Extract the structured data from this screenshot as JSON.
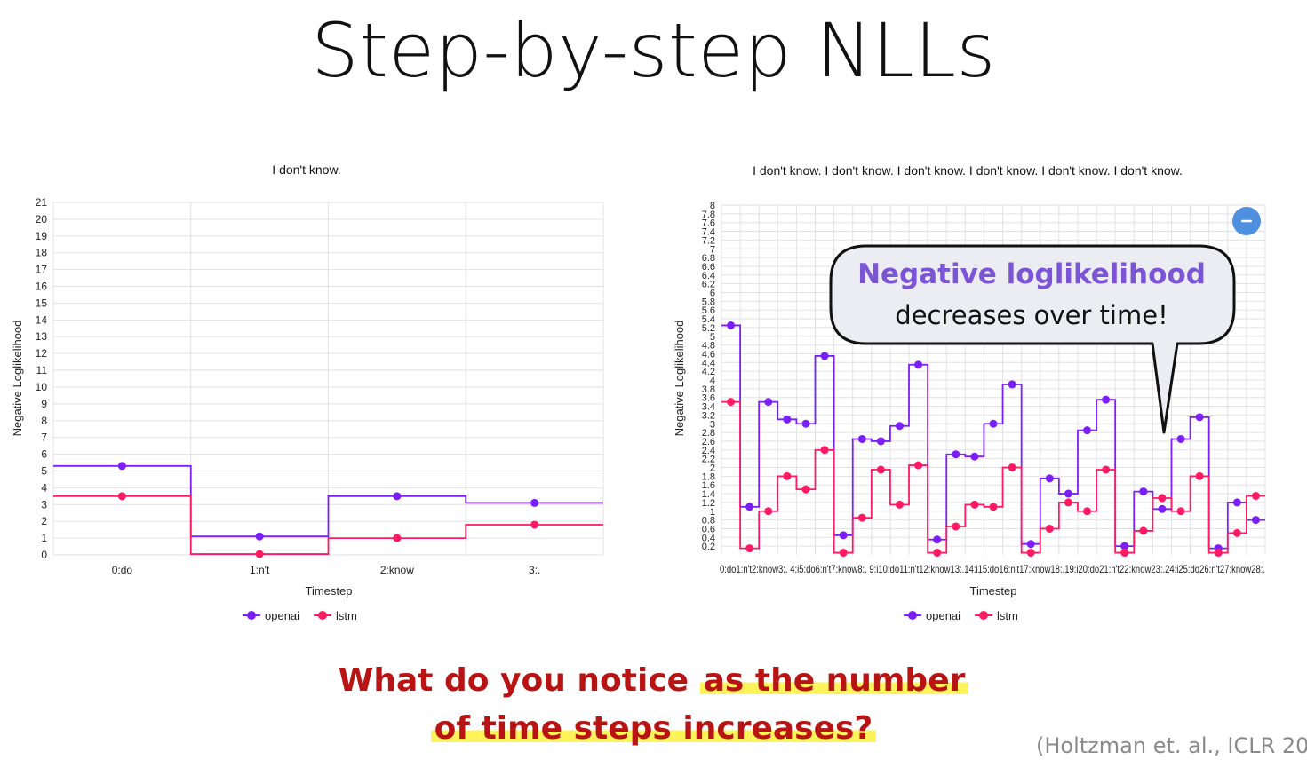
{
  "slide": {
    "title": "Step-by-step NLLs",
    "question_line1_plain": "What do you notice ",
    "question_line1_highlight": "as the number",
    "question_line2_highlight": "of time steps increases?",
    "citation": "(Holtzman et. al., ICLR  20",
    "callout": {
      "line1": "Negative loglikelihood",
      "line2": "decreases over time!"
    },
    "colors": {
      "openai": "#7b1ffa",
      "lstm": "#ff1a63",
      "question": "#b81414",
      "highlight": "#fff35a",
      "callout_title": "#7c55d6",
      "zoom_button": "#4f8fe0"
    },
    "zoom_icon": "minus-icon"
  },
  "chart_data": [
    {
      "type": "line",
      "step": true,
      "title": "I don't know.",
      "xlabel": "Timestep",
      "ylabel": "Negative Loglikelihood",
      "ylim": [
        0,
        21
      ],
      "yticks": [
        0,
        1,
        2,
        3,
        4,
        5,
        6,
        7,
        8,
        9,
        10,
        11,
        12,
        13,
        14,
        15,
        16,
        17,
        18,
        19,
        20,
        21
      ],
      "categories": [
        "0:do",
        "1:n't",
        "2:know",
        "3:."
      ],
      "legend": "bottom",
      "grid": true,
      "series": [
        {
          "name": "openai",
          "color": "#7b1ffa",
          "values": [
            5.3,
            1.1,
            3.5,
            3.1
          ]
        },
        {
          "name": "lstm",
          "color": "#ff1a63",
          "values": [
            3.5,
            0.05,
            1.0,
            1.8
          ]
        }
      ]
    },
    {
      "type": "line",
      "step": true,
      "title": "I don't know. I don't know. I don't know. I don't know. I don't know. I don't know.",
      "xlabel": "Timestep",
      "ylabel": "Negative Loglikelihood",
      "ylim": [
        0,
        8
      ],
      "yticks": [
        0.2,
        0.4,
        0.6,
        0.8,
        1,
        1.2,
        1.4,
        1.6,
        1.8,
        2,
        2.2,
        2.4,
        2.6,
        2.8,
        3,
        3.2,
        3.4,
        3.6,
        3.8,
        4,
        4.2,
        4.4,
        4.6,
        4.8,
        5,
        5.2,
        5.4,
        5.6,
        5.8,
        6,
        6.2,
        6.4,
        6.6,
        6.8,
        7,
        7.2,
        7.4,
        7.6,
        7.8,
        8
      ],
      "xtick_text": "0:do1:n't2:know3:. 4:i5:do6:n't7:know8:. 9:i10:do11:n't12:know13:.14:i15:do16:n't17:know18:.19:i20:do21:n't22:know23:.24:i25:do26:n't27:know28:.",
      "legend": "bottom",
      "grid": true,
      "series": [
        {
          "name": "openai",
          "color": "#7b1ffa",
          "values": [
            5.25,
            1.1,
            3.5,
            3.1,
            3.0,
            4.55,
            0.45,
            2.65,
            2.6,
            2.95,
            4.35,
            0.35,
            2.3,
            2.25,
            3.0,
            3.9,
            0.25,
            1.75,
            1.4,
            2.85,
            3.55,
            0.2,
            1.45,
            1.05,
            2.65,
            3.15,
            0.15,
            1.2,
            0.8
          ]
        },
        {
          "name": "lstm",
          "color": "#ff1a63",
          "values": [
            3.5,
            0.15,
            1.0,
            1.8,
            1.5,
            2.4,
            0.05,
            0.85,
            1.95,
            1.15,
            2.05,
            0.05,
            0.65,
            1.15,
            1.1,
            2.0,
            0.05,
            0.6,
            1.2,
            1.0,
            1.95,
            0.05,
            0.55,
            1.3,
            1.0,
            1.8,
            0.05,
            0.5,
            1.35
          ]
        }
      ]
    }
  ]
}
